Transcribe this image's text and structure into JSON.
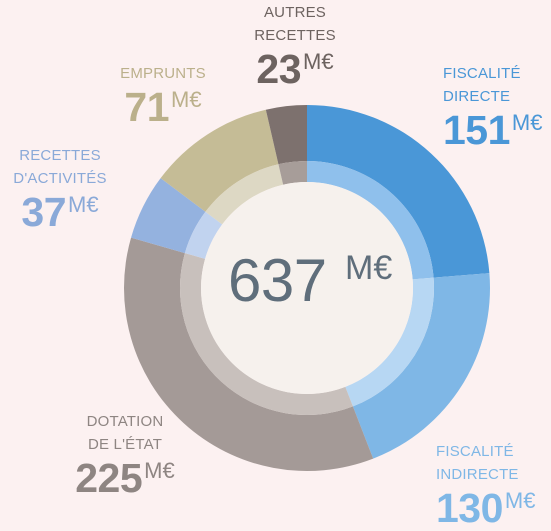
{
  "chart_data": {
    "type": "pie",
    "total": 637,
    "unit": "M€",
    "center_label": {
      "value": "637",
      "unit": "M€"
    },
    "slices": [
      {
        "label_lines": [
          "FISCALITÉ",
          "DIRECTE"
        ],
        "value": 151,
        "unit": "M€",
        "color": "#4a97d7",
        "inner_color": "#8fc0ec",
        "label_color": "#4a97d7"
      },
      {
        "label_lines": [
          "FISCALITÉ",
          "INDIRECTE"
        ],
        "value": 130,
        "unit": "M€",
        "color": "#7fb7e6",
        "inner_color": "#b7d7f3",
        "label_color": "#7fb7e6"
      },
      {
        "label_lines": [
          "DOTATION",
          "DE L'ÉTAT"
        ],
        "value": 225,
        "unit": "M€",
        "color": "#a49a97",
        "inner_color": "#c8c0bc",
        "label_color": "#8e8582"
      },
      {
        "label_lines": [
          "RECETTES",
          "D'ACTIVITÉS"
        ],
        "value": 37,
        "unit": "M€",
        "color": "#94b2df",
        "inner_color": "#c1d3ef",
        "label_color": "#8aa9d8"
      },
      {
        "label_lines": [
          "EMPRUNTS"
        ],
        "value": 71,
        "unit": "M€",
        "color": "#c5bc96",
        "inner_color": "#ddd8c4",
        "label_color": "#bbb08b"
      },
      {
        "label_lines": [
          "AUTRES",
          "RECETTES"
        ],
        "value": 23,
        "unit": "M€",
        "color": "#7d716e",
        "inner_color": "#a79d99",
        "label_color": "#6d6360"
      }
    ]
  }
}
